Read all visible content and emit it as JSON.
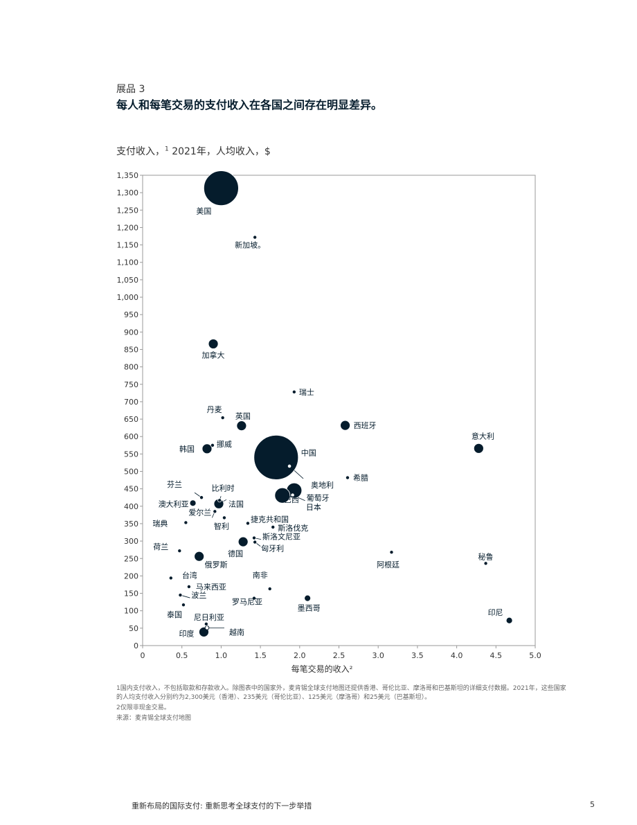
{
  "header": {
    "exhibit_label": "展品 3",
    "title": "每人和每笔交易的支付收入在各国之间存在明显差异。",
    "subtitle_pre": "支付收入，",
    "subtitle_sup": "1",
    "subtitle_post": "2021年，人均收入，$"
  },
  "chart_data": {
    "type": "scatter",
    "xlabel": "每笔交易的收入²",
    "ylabel": "",
    "xlim": [
      0,
      5
    ],
    "ylim": [
      0,
      1350
    ],
    "grid": false,
    "x_ticks": [
      "0",
      "0.5",
      "1.0",
      "1.5",
      "2.0",
      "2.5",
      "3.0",
      "3.5",
      "4.0",
      "4.5",
      "5.0"
    ],
    "y_ticks": [
      "0",
      "50",
      "100",
      "150",
      "200",
      "250",
      "300",
      "350",
      "400",
      "450",
      "500",
      "550",
      "600",
      "650",
      "700",
      "750",
      "800",
      "850",
      "900",
      "950",
      "1,000",
      "1,050",
      "1,100",
      "1,150",
      "1,200",
      "1,250",
      "1,300",
      "1,350"
    ],
    "bubble_color": "#051c2c",
    "points": [
      {
        "label": "美国",
        "x": 1.0,
        "y": 1313,
        "size": "xl"
      },
      {
        "label": "新加坡。",
        "x": 1.43,
        "y": 1172,
        "size": "xs"
      },
      {
        "label": "加拿大",
        "x": 0.9,
        "y": 866,
        "size": "m"
      },
      {
        "label": "瑞士",
        "x": 1.93,
        "y": 728,
        "size": "xs"
      },
      {
        "label": "丹麦",
        "x": 1.02,
        "y": 654,
        "size": "xs"
      },
      {
        "label": "英国",
        "x": 1.26,
        "y": 631,
        "size": "m"
      },
      {
        "label": "西班牙",
        "x": 2.58,
        "y": 632,
        "size": "m"
      },
      {
        "label": "挪威",
        "x": 0.89,
        "y": 575,
        "size": "xs"
      },
      {
        "label": "韩国",
        "x": 0.82,
        "y": 565,
        "size": "m"
      },
      {
        "label": "意大利",
        "x": 4.28,
        "y": 566,
        "size": "m"
      },
      {
        "label": "中国",
        "x": 1.7,
        "y": 540,
        "size": "xxl"
      },
      {
        "label": "奥地利",
        "x": 1.87,
        "y": 515,
        "size": "hollow"
      },
      {
        "label": "希腊",
        "x": 2.61,
        "y": 482,
        "size": "xs"
      },
      {
        "label": "芬兰",
        "x": 0.75,
        "y": 425,
        "size": "xs"
      },
      {
        "label": "比利时",
        "x": 0.98,
        "y": 417,
        "size": "xs"
      },
      {
        "label": "法国",
        "x": 0.97,
        "y": 407,
        "size": "m"
      },
      {
        "label": "澳大利亚",
        "x": 0.64,
        "y": 409,
        "size": "s"
      },
      {
        "label": "日本",
        "x": 1.93,
        "y": 445,
        "size": "l"
      },
      {
        "label": "巴西",
        "x": 1.78,
        "y": 431,
        "size": "l"
      },
      {
        "label": "葡萄牙",
        "x": 1.91,
        "y": 432,
        "size": "hollow"
      },
      {
        "label": "爱尔兰",
        "x": 0.92,
        "y": 385,
        "size": "xs"
      },
      {
        "label": "智利",
        "x": 1.04,
        "y": 367,
        "size": "xs"
      },
      {
        "label": "捷克共和国",
        "x": 1.34,
        "y": 351,
        "size": "xs"
      },
      {
        "label": "瑞典",
        "x": 0.55,
        "y": 353,
        "size": "xs"
      },
      {
        "label": "斯洛伐克",
        "x": 1.66,
        "y": 340,
        "size": "xs"
      },
      {
        "label": "斯洛文尼亚",
        "x": 1.42,
        "y": 309,
        "size": "xs"
      },
      {
        "label": "匈牙利",
        "x": 1.43,
        "y": 297,
        "size": "xs"
      },
      {
        "label": "德国",
        "x": 1.28,
        "y": 298,
        "size": "m"
      },
      {
        "label": "荷兰",
        "x": 0.47,
        "y": 272,
        "size": "xs"
      },
      {
        "label": "阿根廷",
        "x": 3.17,
        "y": 268,
        "size": "xs"
      },
      {
        "label": "俄罗斯",
        "x": 0.72,
        "y": 256,
        "size": "m"
      },
      {
        "label": "秘鲁",
        "x": 4.37,
        "y": 236,
        "size": "xs"
      },
      {
        "label": "台湾",
        "x": 0.36,
        "y": 194,
        "size": "xs"
      },
      {
        "label": "南非",
        "x": 1.62,
        "y": 163,
        "size": "xs"
      },
      {
        "label": "马来西亚",
        "x": 0.59,
        "y": 169,
        "size": "xs"
      },
      {
        "label": "波兰",
        "x": 0.48,
        "y": 145,
        "size": "xs"
      },
      {
        "label": "墨西哥",
        "x": 2.1,
        "y": 136,
        "size": "s"
      },
      {
        "label": "罗马尼亚",
        "x": 1.42,
        "y": 136,
        "size": "xs"
      },
      {
        "label": "泰国",
        "x": 0.52,
        "y": 117,
        "size": "xs"
      },
      {
        "label": "印尼",
        "x": 4.67,
        "y": 72,
        "size": "s"
      },
      {
        "label": "尼日利亚",
        "x": 0.81,
        "y": 62,
        "size": "xs"
      },
      {
        "label": "越南",
        "x": 0.82,
        "y": 51,
        "size": "hollow"
      },
      {
        "label": "印度",
        "x": 0.78,
        "y": 39,
        "size": "m"
      }
    ]
  },
  "footnotes": {
    "note1": "1国内支付收入，不包括取款和存款收入。除图表中的国家外，麦肯锡全球支付地图还提供香港、哥伦比亚、摩洛哥和巴基斯坦的详细支付数据。2021年，这些国家的人均支付收入分别约为2,300美元（香港）、235美元（哥伦比亚）、125美元（摩洛哥）和25美元（巴基斯坦）。",
    "note2": "2仅限非现金交易。",
    "source": "来源：麦肯锡全球支付地图"
  },
  "footer": {
    "title": "重新布局的国际支付: 重新思考全球支付的下一步举措",
    "page_number": "5"
  }
}
